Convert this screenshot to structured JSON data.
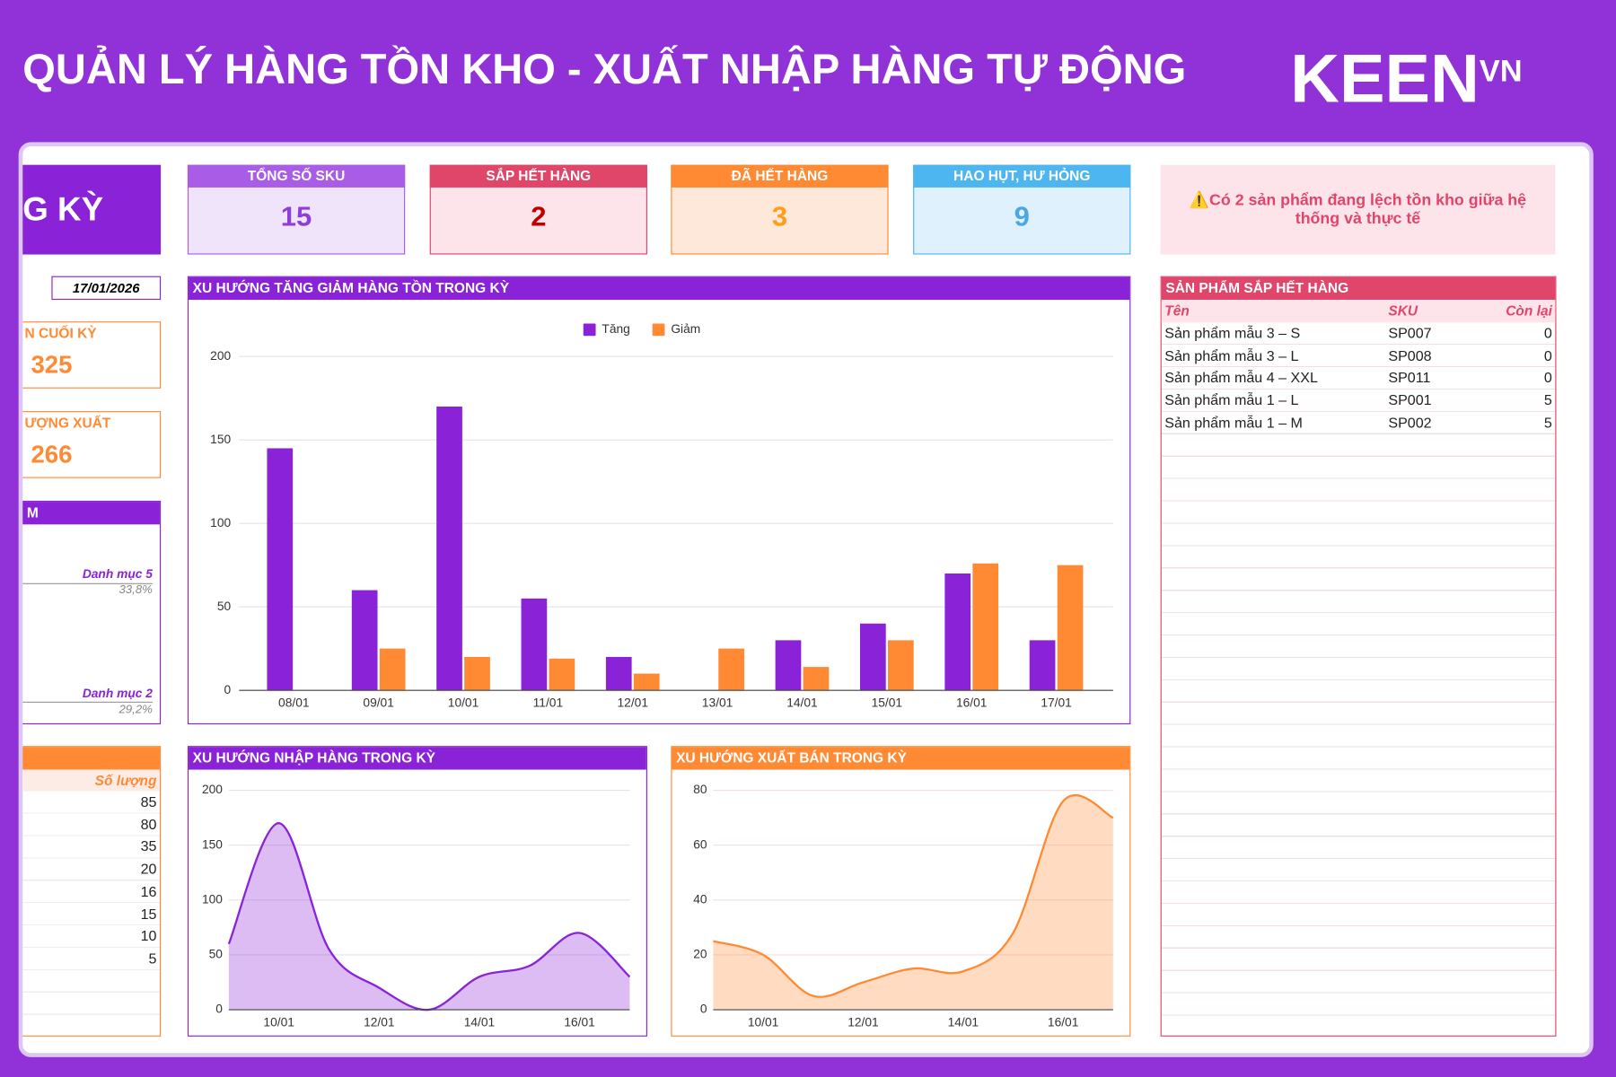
{
  "header": {
    "title": "QUẢN LÝ HÀNG TỒN KHO - XUẤT NHẬP HÀNG TỰ ĐỘNG",
    "logo": "KEEN",
    "logo_sup": "VN"
  },
  "left_panel": {
    "title": "G KỲ",
    "date": "17/01/2026",
    "cards": [
      {
        "label": "N CUỐI KỲ",
        "value": 325
      },
      {
        "label": "ƯỢNG XUẤT",
        "value": 266
      }
    ],
    "category_panel": {
      "title": "M",
      "items": [
        {
          "name": "Danh mục 5",
          "share": "33,8%"
        },
        {
          "name": "Danh mục 2",
          "share": "29,2%"
        }
      ]
    },
    "quantity_panel": {
      "column": "Số lượng",
      "values": [
        85,
        80,
        35,
        20,
        16,
        15,
        10,
        5
      ]
    }
  },
  "kpis": [
    {
      "label": "TỔNG SỐ SKU",
      "value": 15
    },
    {
      "label": "SẮP HẾT HÀNG",
      "value": 2
    },
    {
      "label": "ĐÃ HẾT HÀNG",
      "value": 3
    },
    {
      "label": "HAO HỤT, HƯ HỎNG",
      "value": 9
    }
  ],
  "alert": "⚠️Có 2 sản phẩm đang lệch tồn kho giữa hệ thống và thực tế",
  "low_stock": {
    "title": "SẢN PHẨM SẮP HẾT HÀNG",
    "columns": [
      "Tên",
      "SKU",
      "Còn lại"
    ],
    "rows": [
      [
        "Sản phẩm mẫu 3 – S",
        "SP007",
        0
      ],
      [
        "Sản phẩm mẫu 3 – L",
        "SP008",
        0
      ],
      [
        "Sản phẩm mẫu 4 – XXL",
        "SP011",
        0
      ],
      [
        "Sản phẩm mẫu 1 – L",
        "SP001",
        5
      ],
      [
        "Sản phẩm mẫu 1 – M",
        "SP002",
        5
      ]
    ]
  },
  "chart_data": [
    {
      "type": "bar",
      "title": "XU HƯỚNG TĂNG GIẢM HÀNG TỒN TRONG KỲ",
      "categories": [
        "08/01",
        "09/01",
        "10/01",
        "11/01",
        "12/01",
        "13/01",
        "14/01",
        "15/01",
        "16/01",
        "17/01"
      ],
      "series": [
        {
          "name": "Tăng",
          "color": "#8a22d8",
          "values": [
            145,
            60,
            170,
            55,
            20,
            0,
            30,
            40,
            70,
            30
          ]
        },
        {
          "name": "Giảm",
          "color": "#ff8a33",
          "values": [
            0,
            25,
            20,
            19,
            10,
            25,
            14,
            30,
            76,
            75
          ]
        }
      ],
      "ylim": [
        0,
        200
      ],
      "yticks": [
        0,
        50,
        100,
        150,
        200
      ],
      "grid": true,
      "legend": "top"
    },
    {
      "type": "area",
      "title": "XU HƯỚNG NHẬP HÀNG TRONG KỲ",
      "categories": [
        null,
        "10/01",
        null,
        "12/01",
        null,
        "14/01",
        null,
        "16/01",
        null
      ],
      "values": [
        60,
        170,
        55,
        20,
        0,
        30,
        40,
        70,
        30
      ],
      "color": "#8a22d8",
      "smooth": true,
      "ylim": [
        0,
        200
      ],
      "yticks": [
        0,
        50,
        100,
        150,
        200
      ],
      "grid": true
    },
    {
      "type": "area",
      "title": "XU HƯỚNG XUẤT BÁN TRONG KỲ",
      "categories": [
        null,
        "10/01",
        null,
        "12/01",
        null,
        "14/01",
        null,
        "16/01",
        null
      ],
      "values": [
        25,
        20,
        5,
        10,
        15,
        14,
        28,
        76,
        70
      ],
      "color": "#ff8a33",
      "smooth": true,
      "ylim": [
        0,
        80
      ],
      "yticks": [
        0,
        20,
        40,
        60,
        80
      ],
      "grid": true
    }
  ]
}
